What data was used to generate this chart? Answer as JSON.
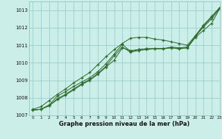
{
  "xlabel": "Graphe pression niveau de la mer (hPa)",
  "ylim": [
    1007,
    1013.5
  ],
  "xlim": [
    -0.5,
    23
  ],
  "yticks": [
    1007,
    1008,
    1009,
    1010,
    1011,
    1012,
    1013
  ],
  "xticks": [
    0,
    1,
    2,
    3,
    4,
    5,
    6,
    7,
    8,
    9,
    10,
    11,
    12,
    13,
    14,
    15,
    16,
    17,
    18,
    19,
    20,
    21,
    22,
    23
  ],
  "background_color": "#cceee8",
  "grid_color": "#99cccc",
  "line_color": "#2d6a2d",
  "lines": [
    [
      1007.3,
      1007.35,
      1007.55,
      1007.9,
      1008.15,
      1008.45,
      1008.75,
      1009.0,
      1009.35,
      1009.75,
      1010.15,
      1010.85,
      1010.7,
      1010.75,
      1010.8,
      1010.8,
      1010.8,
      1010.85,
      1010.8,
      1010.85,
      1011.45,
      1011.85,
      1012.25,
      1013.1
    ],
    [
      1007.3,
      1007.35,
      1007.55,
      1007.95,
      1008.2,
      1008.5,
      1008.8,
      1009.05,
      1009.4,
      1009.8,
      1010.4,
      1010.9,
      1010.6,
      1010.7,
      1010.75,
      1010.8,
      1010.8,
      1010.85,
      1010.8,
      1010.85,
      1011.5,
      1012.05,
      1012.5,
      1013.1
    ],
    [
      1007.3,
      1007.35,
      1007.6,
      1008.1,
      1008.35,
      1008.65,
      1008.9,
      1009.15,
      1009.5,
      1009.95,
      1010.5,
      1011.05,
      1010.65,
      1010.75,
      1010.8,
      1010.8,
      1010.8,
      1010.9,
      1010.85,
      1010.9,
      1011.5,
      1012.1,
      1012.6,
      1013.15
    ],
    [
      1007.35,
      1007.5,
      1007.85,
      1008.2,
      1008.5,
      1008.85,
      1009.15,
      1009.45,
      1009.9,
      1010.35,
      1010.75,
      1011.1,
      1011.4,
      1011.45,
      1011.45,
      1011.35,
      1011.3,
      1011.2,
      1011.1,
      1011.0,
      1011.55,
      1012.15,
      1012.65,
      1013.15
    ]
  ]
}
